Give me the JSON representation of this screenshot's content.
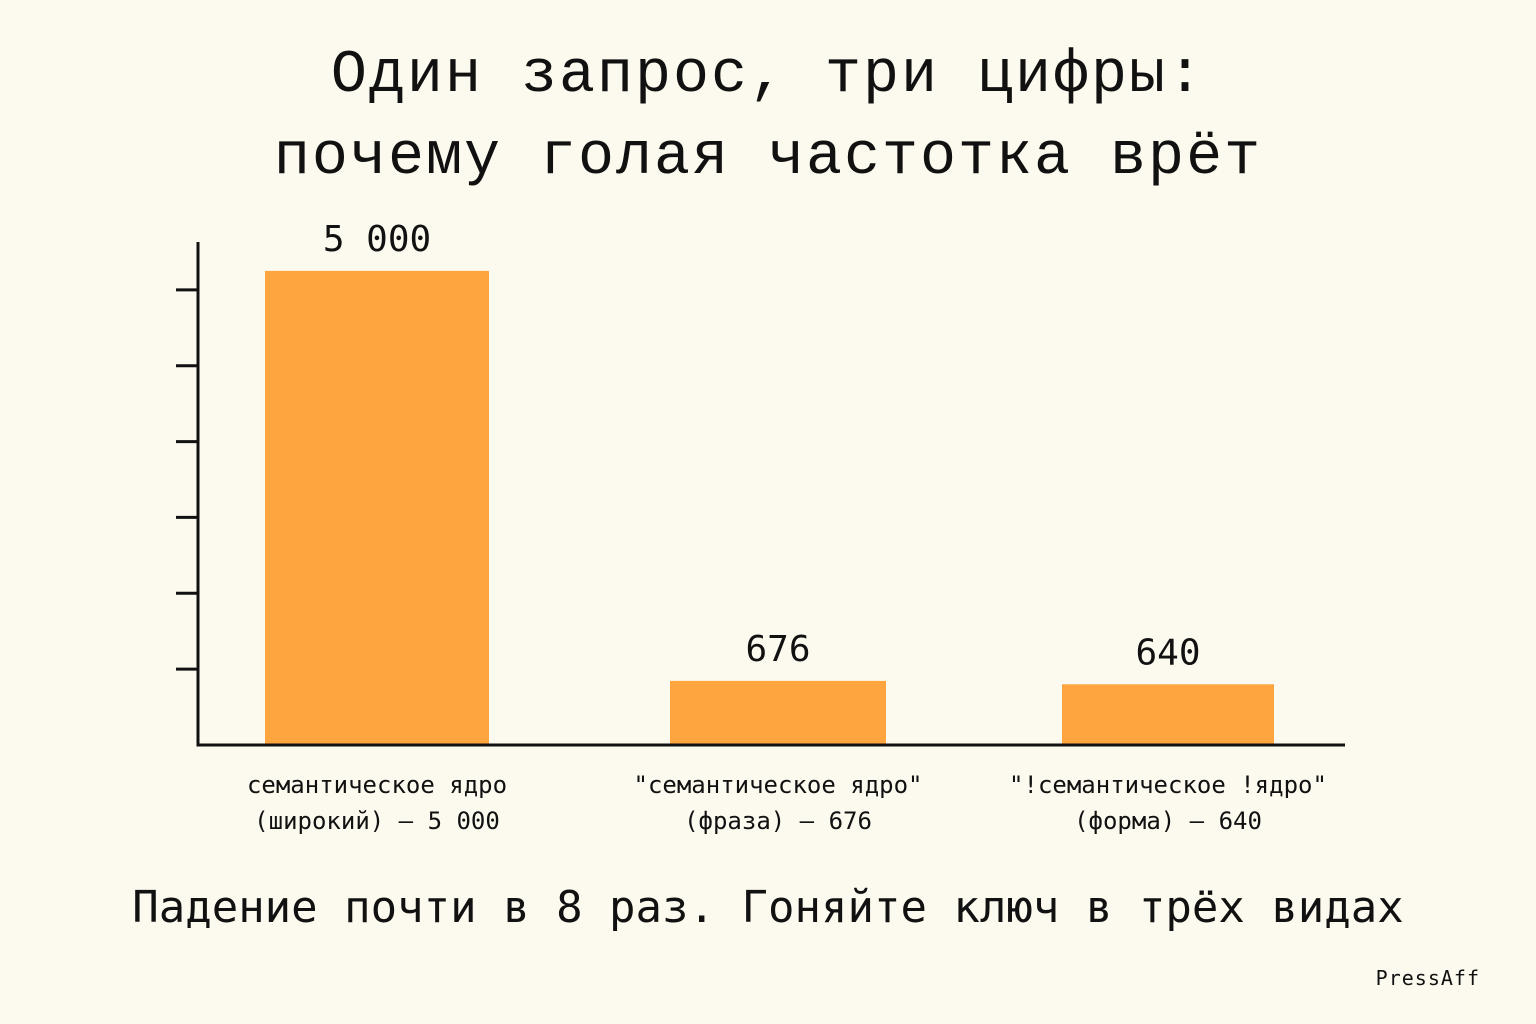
{
  "title": {
    "line1": "Один запрос, три цифры:",
    "line2": "почему голая частотка врёт"
  },
  "chart_data": {
    "type": "bar",
    "categories": [
      [
        "семантическое ядро",
        "(широкий) — 5 000"
      ],
      [
        "\"семантическое ядро\"",
        "(фраза) — 676"
      ],
      [
        "\"!семантическое !ядро\"",
        "(форма) — 640"
      ]
    ],
    "values": [
      5000,
      676,
      640
    ],
    "value_labels": [
      "5 000",
      "676",
      "640"
    ],
    "ylim": [
      0,
      5600
    ],
    "yticks": [
      800,
      1600,
      2400,
      3200,
      4000,
      4800
    ],
    "ytick_labels_shown": false,
    "grid": false,
    "legend": "none",
    "bar_color": "#ffa53f",
    "axis_color": "#111111"
  },
  "footer": "Падение почти в 8 раз. Гоняйте ключ в трёх видах",
  "brand": "PressAff"
}
